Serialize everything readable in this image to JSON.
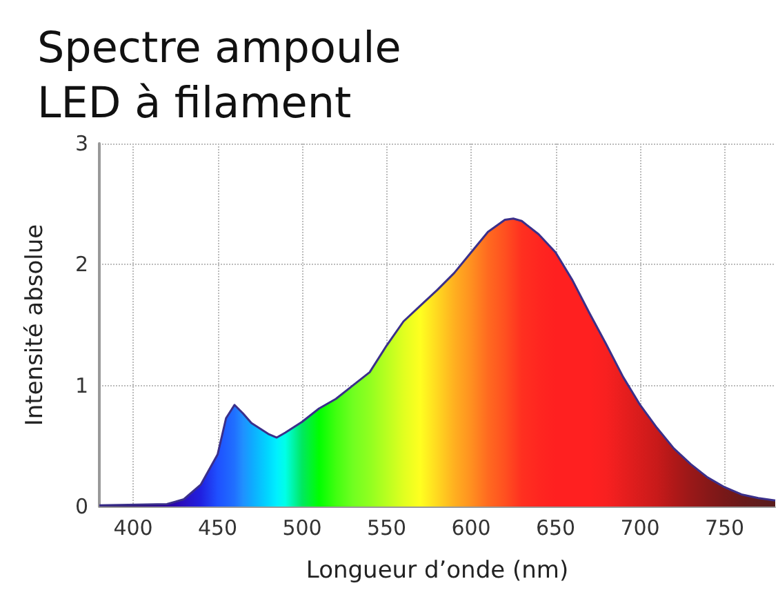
{
  "chart_data": {
    "type": "area",
    "title": "Spectre ampoule LED à filament",
    "xlabel": "Longueur d’onde (nm)",
    "ylabel": "Intensité absolue",
    "x": [
      380,
      420,
      430,
      440,
      450,
      455,
      460,
      465,
      470,
      480,
      485,
      490,
      500,
      510,
      520,
      530,
      540,
      550,
      560,
      570,
      580,
      590,
      600,
      610,
      620,
      625,
      630,
      640,
      650,
      660,
      670,
      680,
      690,
      700,
      710,
      720,
      730,
      740,
      750,
      760,
      770,
      780
    ],
    "series": [
      {
        "color": "#3a2f8a",
        "values": [
          0.01,
          0.02,
          0.06,
          0.18,
          0.43,
          0.73,
          0.84,
          0.77,
          0.69,
          0.6,
          0.57,
          0.61,
          0.7,
          0.81,
          0.89,
          1.0,
          1.11,
          1.33,
          1.53,
          1.66,
          1.79,
          1.93,
          2.1,
          2.27,
          2.37,
          2.38,
          2.36,
          2.25,
          2.1,
          1.87,
          1.6,
          1.34,
          1.07,
          0.84,
          0.65,
          0.48,
          0.35,
          0.24,
          0.16,
          0.1,
          0.07,
          0.05
        ],
        "colors": [
          "#1a0040",
          "#2a00a0",
          "#2a10c0",
          "#2020e0",
          "#1f50ff",
          "#1f60ff",
          "#2070ff",
          "#2090ff",
          "#10a8ff",
          "#00d8ff",
          "#00f0ff",
          "#00ffe8",
          "#00e860",
          "#00ff00",
          "#40ff10",
          "#70ff20",
          "#90ff20",
          "#b8ff20",
          "#e0ff20",
          "#ffff20",
          "#ffd820",
          "#ffb020",
          "#ff9020",
          "#ff6a20",
          "#ff5020",
          "#ff4020",
          "#ff3020",
          "#ff2620",
          "#ff2020",
          "#ff2020",
          "#ff2020",
          "#f82020",
          "#e81e1e",
          "#d81c1c",
          "#c81a1a",
          "#b01818",
          "#9a1818",
          "#881818",
          "#781818",
          "#6a1a1a",
          "#601c1c",
          "#581c1c"
        ]
      }
    ],
    "xlim": [
      380,
      780
    ],
    "xticks": [
      400,
      450,
      500,
      550,
      600,
      650,
      700,
      750
    ],
    "ylim": [
      0,
      3
    ],
    "yticks": [
      0,
      1,
      2,
      3
    ],
    "grid": true,
    "marker": "none",
    "line_style": "solid"
  }
}
